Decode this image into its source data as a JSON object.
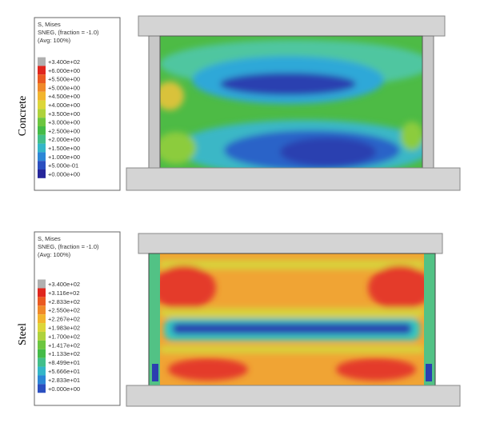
{
  "panels": [
    {
      "label": "Concrete",
      "legend": {
        "title": [
          "S, Mises",
          "SNEG, (fraction = -1.0)",
          "(Avg: 100%)"
        ],
        "labels": [
          "+3.400e+02",
          "+6.000e+00",
          "+5.500e+00",
          "+5.000e+00",
          "+4.500e+00",
          "+4.000e+00",
          "+3.500e+00",
          "+3.000e+00",
          "+2.500e+00",
          "+2.000e+00",
          "+1.500e+00",
          "+1.000e+00",
          "+5.000e-01",
          "+0.000e+00"
        ]
      }
    },
    {
      "label": "Steel",
      "legend": {
        "title": [
          "S, Mises",
          "SNEG, (fraction = -1.0)",
          "(Avg: 100%)"
        ],
        "labels": [
          "+3.400e+02",
          "+3.116e+02",
          "+2.833e+02",
          "+2.550e+02",
          "+2.267e+02",
          "+1.983e+02",
          "+1.700e+02",
          "+1.417e+02",
          "+1.133e+02",
          "+8.499e+01",
          "+5.666e+01",
          "+2.833e+01",
          "+0.000e+00"
        ]
      }
    }
  ]
}
